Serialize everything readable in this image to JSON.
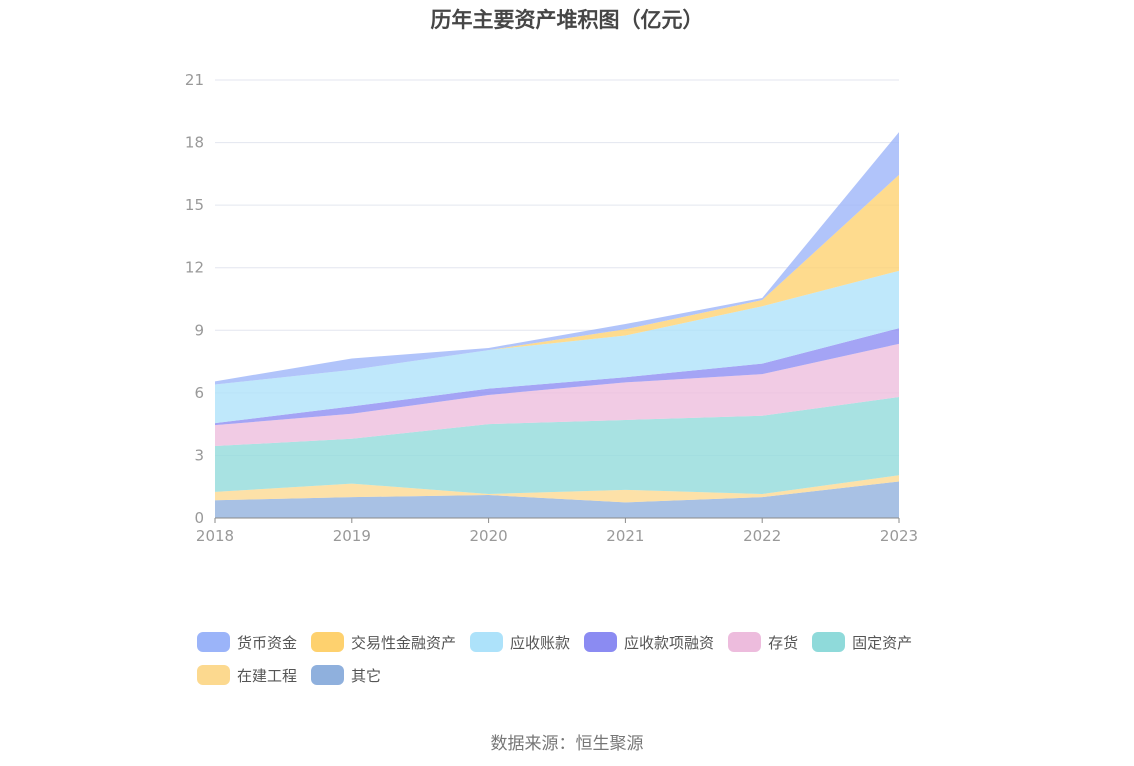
{
  "chart_data": {
    "type": "area",
    "stacked": true,
    "title": "历年主要资产堆积图（亿元）",
    "x": [
      "2018",
      "2019",
      "2020",
      "2021",
      "2022",
      "2023"
    ],
    "ylim": [
      0,
      21
    ],
    "yticks": [
      "0",
      "3",
      "6",
      "9",
      "12",
      "15",
      "18",
      "21"
    ],
    "grid": true,
    "legend_position": "bottom",
    "series": [
      {
        "name": "其它",
        "color": "#8fb0dd",
        "values": [
          0.85,
          1.0,
          1.1,
          0.75,
          1.0,
          1.75
        ]
      },
      {
        "name": "在建工程",
        "color": "#fcd98f",
        "values": [
          0.4,
          0.65,
          0.05,
          0.6,
          0.15,
          0.3
        ]
      },
      {
        "name": "固定资产",
        "color": "#8fdada",
        "values": [
          2.2,
          2.15,
          3.35,
          3.35,
          3.75,
          3.75
        ]
      },
      {
        "name": "存货",
        "color": "#edbcdd",
        "values": [
          1.0,
          1.2,
          1.4,
          1.8,
          2.0,
          2.55
        ]
      },
      {
        "name": "应收款项融资",
        "color": "#8b8bf2",
        "values": [
          0.1,
          0.35,
          0.3,
          0.25,
          0.5,
          0.75
        ]
      },
      {
        "name": "应收账款",
        "color": "#ade2fa",
        "values": [
          1.85,
          1.75,
          1.85,
          2.0,
          2.75,
          2.75
        ]
      },
      {
        "name": "交易性金融资产",
        "color": "#fed16e",
        "values": [
          0.0,
          0.0,
          0.0,
          0.3,
          0.3,
          4.6
        ]
      },
      {
        "name": "货币资金",
        "color": "#9bb4f9",
        "values": [
          0.15,
          0.55,
          0.1,
          0.25,
          0.1,
          2.05
        ]
      }
    ]
  },
  "legend_order": [
    "货币资金",
    "交易性金融资产",
    "应收账款",
    "应收款项融资",
    "存货",
    "固定资产",
    "在建工程",
    "其它"
  ],
  "source": "数据来源：恒生聚源"
}
